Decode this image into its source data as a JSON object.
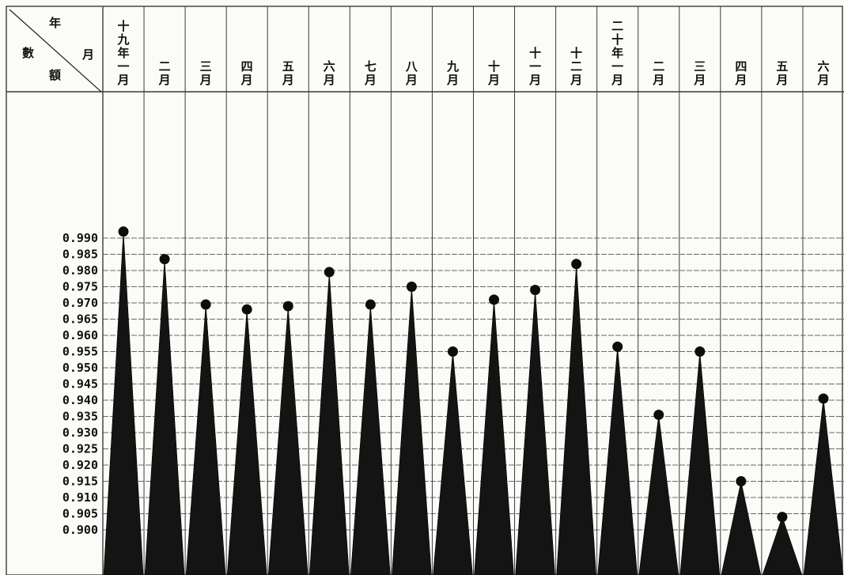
{
  "chart_data": {
    "type": "area",
    "corner_header": {
      "top_label": "年",
      "right_label": "月",
      "left_labels": [
        "數",
        "額"
      ]
    },
    "categories": [
      "十九年一月",
      "二月",
      "三月",
      "四月",
      "五月",
      "六月",
      "七月",
      "八月",
      "九月",
      "十月",
      "十一月",
      "十二月",
      "二十年一月",
      "二月",
      "三月",
      "四月",
      "五月",
      "六月"
    ],
    "values": [
      0.992,
      0.9835,
      0.9695,
      0.968,
      0.969,
      0.9795,
      0.9695,
      0.975,
      0.955,
      0.971,
      0.974,
      0.982,
      0.9565,
      0.9355,
      0.955,
      0.915,
      0.904,
      0.9405
    ],
    "y_ticks": [
      "0.990",
      "0.985",
      "0.980",
      "0.975",
      "0.970",
      "0.965",
      "0.960",
      "0.955",
      "0.950",
      "0.945",
      "0.940",
      "0.935",
      "0.930",
      "0.925",
      "0.920",
      "0.915",
      "0.910",
      "0.905",
      "0.900"
    ],
    "ylim": [
      0.895,
      0.994
    ],
    "grid": true,
    "colors": {
      "fill": "#141414",
      "marker": "#0d0d0d",
      "grid": "#3a3a3a",
      "background": "#fbfbf8"
    }
  }
}
